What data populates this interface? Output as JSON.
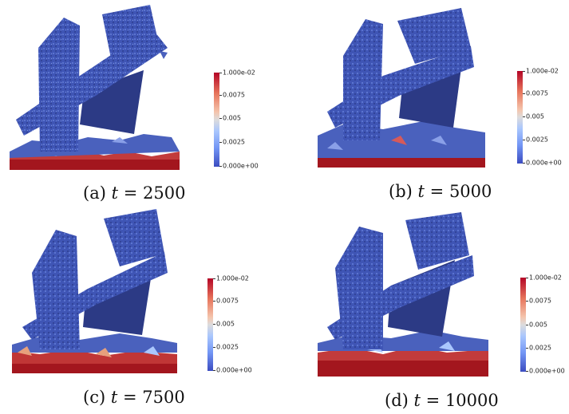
{
  "panels": [
    {
      "id": "a",
      "caption_prefix": "(a)",
      "caption_var": "t",
      "caption_eq": "= 2500",
      "colorbar": {
        "max": "1.000e-02",
        "t1": "0.0075",
        "t2": "0.005",
        "t3": "0.0025",
        "min": "0.000e+00"
      }
    },
    {
      "id": "b",
      "caption_prefix": "(b)",
      "caption_var": "t",
      "caption_eq": "= 5000",
      "colorbar": {
        "max": "1.000e-02",
        "t1": "0.0075",
        "t2": "0.005",
        "t3": "0.0025",
        "min": "0.000e+00"
      }
    },
    {
      "id": "c",
      "caption_prefix": "(c)",
      "caption_var": "t",
      "caption_eq": "= 7500",
      "colorbar": {
        "max": "1.000e-02",
        "t1": "0.0075",
        "t2": "0.005",
        "t3": "0.0025",
        "min": "0.000e+00"
      }
    },
    {
      "id": "d",
      "caption_prefix": "(d)",
      "caption_var": "t",
      "caption_eq": "= 10000",
      "colorbar": {
        "max": "1.000e-02",
        "t1": "0.0075",
        "t2": "0.005",
        "t3": "0.0025",
        "min": "0.000e+00"
      }
    }
  ],
  "colors": {
    "mesh_blue": "#3b4fb0",
    "plate_blue": "#2c3a85",
    "ground_red": "#a3161e",
    "scale_max": "#b40426",
    "scale_min": "#3b4cc0"
  }
}
